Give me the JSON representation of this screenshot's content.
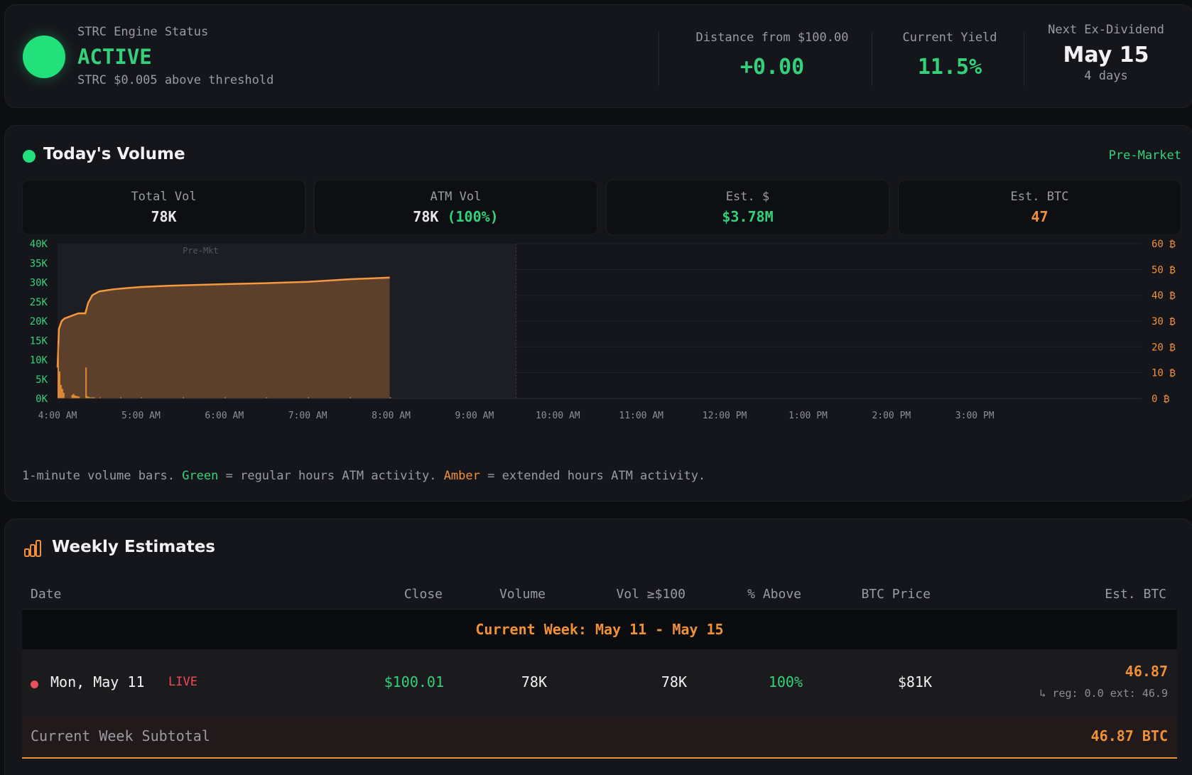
{
  "status": {
    "label": "STRC Engine Status",
    "state": "ACTIVE",
    "detail": "STRC $0.005 above threshold",
    "distance_label": "Distance from $100.00",
    "distance_value": "+0.00",
    "yield_label": "Current Yield",
    "yield_value": "11.5%",
    "exdiv_label": "Next Ex-Dividend",
    "exdiv_date": "May 15",
    "exdiv_days": "4 days"
  },
  "volume": {
    "title": "Today's Volume",
    "session": "Pre-Market",
    "stats": {
      "total_label": "Total Vol",
      "total_value": "78K",
      "atm_label": "ATM Vol",
      "atm_value": "78K",
      "atm_pct": "(100%)",
      "usd_label": "Est. $",
      "usd_value": "$3.78M",
      "btc_label": "Est. BTC",
      "btc_value": "47"
    },
    "caption_pre": "1-minute volume bars.",
    "caption_green": "Green",
    "caption_mid": "= regular hours ATM activity.",
    "caption_amber": "Amber",
    "caption_post": "= extended hours ATM activity."
  },
  "chart_data": {
    "type": "bar",
    "region_label": "Pre-Mkt",
    "x_ticks": [
      "4:00 AM",
      "5:00 AM",
      "6:00 AM",
      "7:00 AM",
      "8:00 AM",
      "9:00 AM",
      "10:00 AM",
      "11:00 AM",
      "12:00 PM",
      "1:00 PM",
      "2:00 PM",
      "3:00 PM"
    ],
    "y_left_ticks": [
      "40K",
      "35K",
      "30K",
      "25K",
      "20K",
      "15K",
      "10K",
      "5K",
      "0K"
    ],
    "y_right_ticks": [
      "60 ₿",
      "50 ₿",
      "40 ₿",
      "30 ₿",
      "20 ₿",
      "10 ₿",
      "0 ₿"
    ],
    "ylim_left": [
      0,
      40000
    ],
    "ylim_right": [
      0,
      60
    ],
    "premarket_end": "9:30 AM",
    "series": [
      {
        "values_minutes": [
          0,
          1,
          2,
          3,
          4,
          10,
          11,
          12,
          13,
          14,
          15,
          20,
          21,
          22,
          23,
          24,
          25,
          26,
          30,
          45,
          60,
          90,
          120,
          150,
          180,
          210,
          239
        ],
        "values": [
          14000,
          7000,
          3500,
          2500,
          1500,
          900,
          1200,
          800,
          700,
          600,
          500,
          8000,
          600,
          400,
          300,
          300,
          300,
          300,
          300,
          300,
          300,
          300,
          300,
          300,
          300,
          300,
          300
        ]
      },
      {
        "cumulative_btc_minutes": [
          0,
          1,
          3,
          5,
          10,
          15,
          20,
          22,
          25,
          30,
          40,
          50,
          60,
          80,
          100,
          120,
          150,
          180,
          210,
          239
        ],
        "cumulative_btc": [
          12,
          27,
          30,
          31,
          32,
          33,
          33,
          37,
          40,
          41.5,
          42.3,
          42.8,
          43.2,
          43.7,
          44.0,
          44.3,
          44.7,
          45.2,
          46.2,
          46.87
        ]
      }
    ]
  },
  "weekly": {
    "title": "Weekly Estimates",
    "headers": {
      "date": "Date",
      "close": "Close",
      "volume": "Volume",
      "vol_above": "Vol ≥$100",
      "pct_above": "% Above",
      "btc_price": "BTC Price",
      "est_btc": "Est. BTC"
    },
    "week_label": "Current Week: May 11 - May 15",
    "row": {
      "date": "Mon, May 11",
      "live": "LIVE",
      "close": "$100.01",
      "volume": "78K",
      "vol_above": "78K",
      "pct_above": "100%",
      "btc_price": "$81K",
      "est_btc": "46.87",
      "breakdown": "↳ reg: 0.0 ext: 46.9"
    },
    "subtotal_label": "Current Week Subtotal",
    "subtotal_value": "46.87 BTC"
  }
}
